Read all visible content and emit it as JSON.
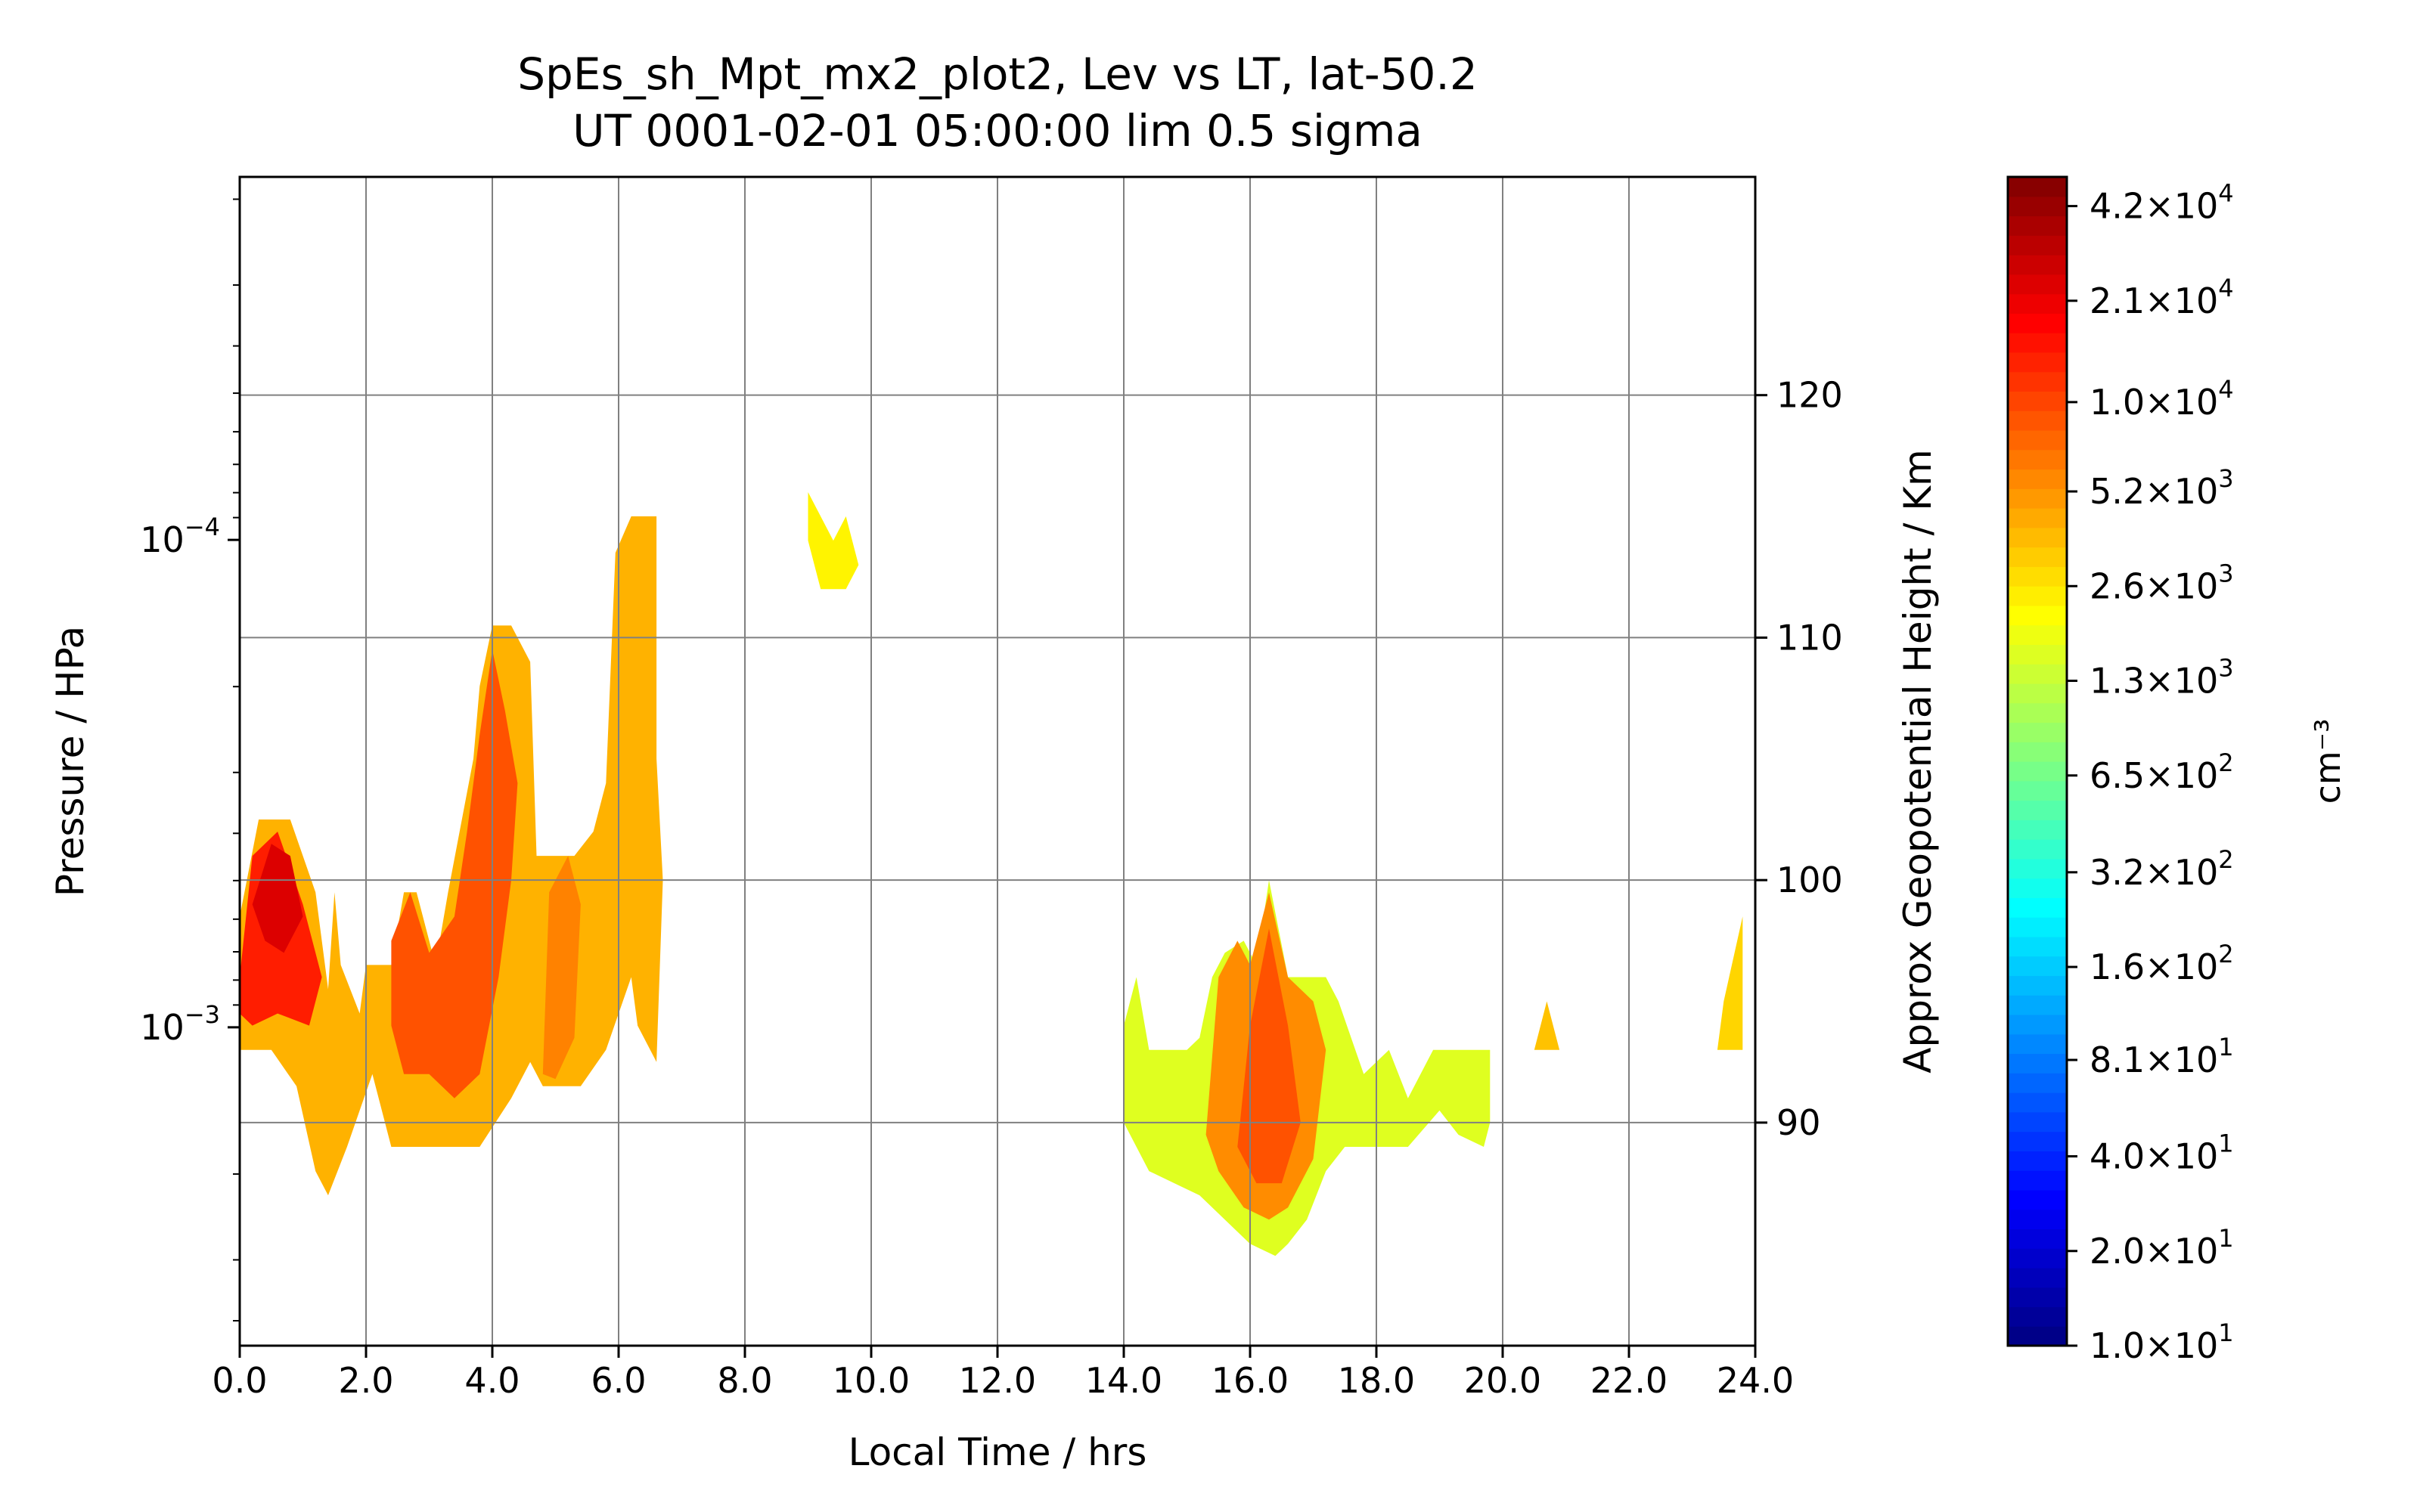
{
  "chart_data": {
    "type": "contourf",
    "title": "SpEs_sh_Mpt_mx2_plot2, Lev vs LT, lat-50.2",
    "subtitle": "UT 0001-02-01 05:00:00 lim 0.5 sigma",
    "xlabel": "Local Time / hrs",
    "ylabel": "Pressure / HPa",
    "ylabel_right": "Approx Geopotential Height / Km",
    "colorbar_label": "cm⁻³",
    "colormap": "jet",
    "log_color_scale": true,
    "y_scale": "log",
    "y_inverted": true,
    "grid": true,
    "xlim": [
      0,
      24
    ],
    "ylim_hpa": [
      0.0045,
      1.8e-05
    ],
    "right_axis_km_range": [
      80.8,
      129.0
    ],
    "color_range": [
      10,
      52000
    ],
    "x_ticks": [
      "0.0",
      "2.0",
      "4.0",
      "6.0",
      "8.0",
      "10.0",
      "12.0",
      "14.0",
      "16.0",
      "18.0",
      "20.0",
      "22.0",
      "24.0"
    ],
    "y_ticks": [
      {
        "base": "10",
        "exp": "−4",
        "value": 0.0001
      },
      {
        "base": "10",
        "exp": "−3",
        "value": 0.001
      }
    ],
    "right_ticks": [
      "90",
      "100",
      "110",
      "120"
    ],
    "colorbar_ticks": [
      {
        "mant": "4.2",
        "exp": "4",
        "value": 42000
      },
      {
        "mant": "2.1",
        "exp": "4",
        "value": 21000
      },
      {
        "mant": "1.0",
        "exp": "4",
        "value": 10000
      },
      {
        "mant": "5.2",
        "exp": "3",
        "value": 5200
      },
      {
        "mant": "2.6",
        "exp": "3",
        "value": 2600
      },
      {
        "mant": "1.3",
        "exp": "3",
        "value": 1300
      },
      {
        "mant": "6.5",
        "exp": "2",
        "value": 650
      },
      {
        "mant": "3.2",
        "exp": "2",
        "value": 320
      },
      {
        "mant": "1.6",
        "exp": "2",
        "value": 160
      },
      {
        "mant": "8.1",
        "exp": "1",
        "value": 81
      },
      {
        "mant": "4.0",
        "exp": "1",
        "value": 40
      },
      {
        "mant": "2.0",
        "exp": "1",
        "value": 20
      },
      {
        "mant": "1.0",
        "exp": "1",
        "value": 10
      }
    ],
    "regions": [
      {
        "v": 4000,
        "pts": [
          [
            0.0,
            98.5
          ],
          [
            0.3,
            102.5
          ],
          [
            0.8,
            102.5
          ],
          [
            1.2,
            99.5
          ],
          [
            1.4,
            95.5
          ],
          [
            1.5,
            99.5
          ],
          [
            1.6,
            96.5
          ],
          [
            1.9,
            94.5
          ],
          [
            2.0,
            96.5
          ],
          [
            2.4,
            96.5
          ],
          [
            2.6,
            99.5
          ],
          [
            2.8,
            99.5
          ],
          [
            3.1,
            96.5
          ],
          [
            3.3,
            99.5
          ],
          [
            3.7,
            105
          ],
          [
            3.8,
            108
          ],
          [
            4.0,
            110.5
          ],
          [
            4.3,
            110.5
          ],
          [
            4.6,
            109
          ],
          [
            4.7,
            101
          ],
          [
            5.3,
            101
          ],
          [
            5.6,
            102
          ],
          [
            5.8,
            104
          ],
          [
            5.95,
            113.5
          ],
          [
            6.2,
            115
          ],
          [
            6.6,
            115
          ],
          [
            6.6,
            105
          ],
          [
            6.7,
            100
          ],
          [
            6.6,
            92.5
          ],
          [
            6.3,
            94
          ],
          [
            6.2,
            96
          ],
          [
            5.8,
            93
          ],
          [
            5.4,
            91.5
          ],
          [
            4.8,
            91.5
          ],
          [
            4.6,
            92.5
          ],
          [
            4.3,
            91
          ],
          [
            3.8,
            89
          ],
          [
            3.3,
            89
          ],
          [
            2.9,
            89
          ],
          [
            2.4,
            89
          ],
          [
            2.1,
            92
          ],
          [
            1.9,
            90.5
          ],
          [
            1.7,
            89
          ],
          [
            1.4,
            87
          ],
          [
            1.2,
            88
          ],
          [
            0.9,
            91.5
          ],
          [
            0.5,
            93
          ],
          [
            0.0,
            93
          ]
        ]
      },
      {
        "v": 14000,
        "pts": [
          [
            0.0,
            96
          ],
          [
            0.2,
            101
          ],
          [
            0.6,
            102
          ],
          [
            1.0,
            99
          ],
          [
            1.3,
            96
          ],
          [
            1.1,
            94
          ],
          [
            0.6,
            94.5
          ],
          [
            0.2,
            94
          ],
          [
            0.0,
            94.5
          ]
        ]
      },
      {
        "v": 24000,
        "pts": [
          [
            0.2,
            99
          ],
          [
            0.5,
            101.5
          ],
          [
            0.8,
            101
          ],
          [
            1.0,
            98.5
          ],
          [
            0.7,
            97
          ],
          [
            0.4,
            97.5
          ]
        ]
      },
      {
        "v": 9000,
        "pts": [
          [
            2.4,
            97.5
          ],
          [
            2.7,
            99.5
          ],
          [
            3.0,
            97
          ],
          [
            3.4,
            98.5
          ],
          [
            3.6,
            102
          ],
          [
            3.8,
            106
          ],
          [
            4.0,
            109.5
          ],
          [
            4.2,
            107
          ],
          [
            4.4,
            104
          ],
          [
            4.3,
            100
          ],
          [
            4.1,
            96
          ],
          [
            3.8,
            92
          ],
          [
            3.4,
            91
          ],
          [
            3.0,
            92
          ],
          [
            2.6,
            92
          ],
          [
            2.4,
            94
          ]
        ]
      },
      {
        "v": 6000,
        "pts": [
          [
            4.8,
            92
          ],
          [
            4.9,
            99.5
          ],
          [
            5.2,
            101
          ],
          [
            5.4,
            99
          ],
          [
            5.3,
            93.5
          ],
          [
            5.0,
            91.8
          ]
        ]
      },
      {
        "v": 2300,
        "pts": [
          [
            9.0,
            116
          ],
          [
            9.4,
            114
          ],
          [
            9.6,
            115
          ],
          [
            9.8,
            113
          ],
          [
            9.6,
            112
          ],
          [
            9.2,
            112
          ],
          [
            9.0,
            114
          ]
        ]
      },
      {
        "v": 1600,
        "pts": [
          [
            14.0,
            94
          ],
          [
            14.2,
            96
          ],
          [
            14.4,
            93
          ],
          [
            14.6,
            93
          ],
          [
            15.0,
            93
          ],
          [
            15.2,
            93.5
          ],
          [
            15.4,
            96
          ],
          [
            15.6,
            97
          ],
          [
            15.9,
            97.5
          ],
          [
            16.1,
            96.5
          ],
          [
            16.3,
            100
          ],
          [
            16.6,
            96
          ],
          [
            17.2,
            96
          ],
          [
            17.4,
            95
          ],
          [
            17.8,
            92
          ],
          [
            18.2,
            93
          ],
          [
            18.5,
            91
          ],
          [
            18.9,
            93
          ],
          [
            19.4,
            93
          ],
          [
            19.8,
            93
          ],
          [
            19.8,
            90
          ],
          [
            19.7,
            89
          ],
          [
            19.3,
            89.5
          ],
          [
            19.0,
            90.5
          ],
          [
            18.5,
            89
          ],
          [
            17.5,
            89
          ],
          [
            17.2,
            88
          ],
          [
            16.9,
            86
          ],
          [
            16.6,
            85
          ],
          [
            16.4,
            84.5
          ],
          [
            16.0,
            85
          ],
          [
            15.6,
            86
          ],
          [
            15.2,
            87
          ],
          [
            14.8,
            87.5
          ],
          [
            14.4,
            88
          ],
          [
            14.2,
            89
          ],
          [
            14.0,
            90
          ]
        ]
      },
      {
        "v": 5500,
        "pts": [
          [
            15.3,
            89.5
          ],
          [
            15.5,
            96
          ],
          [
            15.8,
            97.5
          ],
          [
            16.0,
            96.5
          ],
          [
            16.3,
            99.5
          ],
          [
            16.6,
            96
          ],
          [
            17.0,
            95
          ],
          [
            17.2,
            93
          ],
          [
            17.0,
            88.5
          ],
          [
            16.6,
            86.5
          ],
          [
            16.3,
            86
          ],
          [
            15.9,
            86.5
          ],
          [
            15.5,
            88
          ]
        ]
      },
      {
        "v": 9000,
        "pts": [
          [
            15.8,
            89
          ],
          [
            16.0,
            94
          ],
          [
            16.3,
            98
          ],
          [
            16.6,
            94
          ],
          [
            16.8,
            90
          ],
          [
            16.5,
            87.5
          ],
          [
            16.1,
            87.5
          ]
        ]
      },
      {
        "v": 3500,
        "pts": [
          [
            20.5,
            93
          ],
          [
            20.7,
            95
          ],
          [
            20.9,
            93
          ]
        ]
      },
      {
        "v": 3000,
        "pts": [
          [
            23.4,
            93
          ],
          [
            23.5,
            95
          ],
          [
            23.8,
            98.5
          ],
          [
            23.8,
            93
          ]
        ]
      }
    ]
  }
}
